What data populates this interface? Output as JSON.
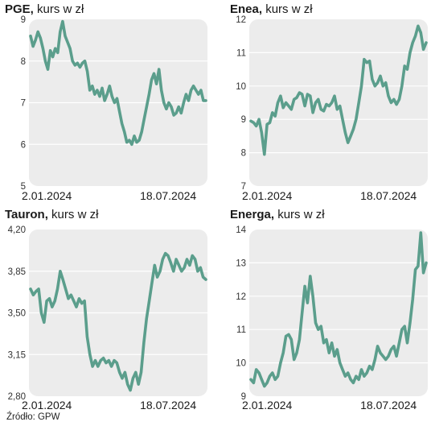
{
  "source": "Źródło: GPW",
  "colors": {
    "line": "#5b9e8c",
    "plot_bg": "#ececec",
    "grid": "#ffffff",
    "text": "#1a1a1a"
  },
  "chart_data": [
    {
      "type": "line",
      "title_bold": "PGE,",
      "title_rest": " kurs w zł",
      "x_tick_labels": [
        "2.01.2024",
        "18.07.2024"
      ],
      "y_tick_labels": [
        "5",
        "6",
        "7",
        "8",
        "9"
      ],
      "ylim": [
        5,
        9
      ],
      "grid": true,
      "values": [
        8.6,
        8.35,
        8.5,
        8.7,
        8.55,
        8.3,
        8.0,
        7.8,
        8.25,
        8.1,
        8.3,
        8.2,
        8.7,
        8.95,
        8.6,
        8.45,
        8.3,
        8.0,
        7.9,
        7.95,
        7.85,
        7.95,
        8.0,
        7.75,
        7.3,
        7.4,
        7.2,
        7.3,
        7.15,
        7.35,
        7.05,
        7.2,
        7.4,
        7.15,
        7.0,
        7.1,
        6.8,
        6.5,
        6.3,
        6.05,
        6.1,
        6.0,
        6.2,
        6.05,
        6.1,
        6.3,
        6.6,
        6.9,
        7.2,
        7.55,
        7.7,
        7.45,
        7.8,
        7.3,
        7.0,
        6.85,
        7.0,
        6.9,
        6.7,
        6.75,
        6.9,
        6.75,
        7.0,
        7.2,
        7.05,
        7.3,
        7.4,
        7.3,
        7.2,
        7.3,
        7.05,
        7.05
      ]
    },
    {
      "type": "line",
      "title_bold": "Enea,",
      "title_rest": " kurs w zł",
      "x_tick_labels": [
        "2.01.2024",
        "18.07.2024"
      ],
      "y_tick_labels": [
        "7",
        "8",
        "9",
        "10",
        "11",
        "12"
      ],
      "ylim": [
        7,
        12
      ],
      "grid": true,
      "values": [
        8.95,
        8.9,
        8.8,
        9.0,
        8.6,
        7.95,
        8.85,
        8.9,
        9.2,
        9.1,
        9.5,
        9.7,
        9.35,
        9.5,
        9.4,
        9.3,
        9.6,
        9.65,
        9.8,
        9.75,
        9.4,
        9.75,
        9.7,
        9.2,
        9.5,
        9.6,
        9.3,
        9.25,
        9.45,
        9.4,
        9.5,
        9.7,
        9.3,
        9.4,
        9.0,
        8.6,
        8.3,
        8.5,
        8.7,
        9.0,
        9.5,
        10.0,
        10.8,
        10.7,
        10.75,
        10.2,
        10.0,
        10.1,
        10.3,
        10.0,
        10.1,
        9.7,
        9.5,
        9.6,
        9.45,
        9.6,
        10.0,
        10.6,
        10.5,
        11.0,
        11.3,
        11.5,
        11.8,
        11.6,
        11.1,
        11.3
      ]
    },
    {
      "type": "line",
      "title_bold": "Tauron,",
      "title_rest": " kurs w zł",
      "x_tick_labels": [
        "2.01.2024",
        "18.07.2024"
      ],
      "y_tick_labels": [
        "2,80",
        "3,15",
        "3,50",
        "3,85",
        "4,20"
      ],
      "ylim": [
        2.8,
        4.2
      ],
      "grid": true,
      "values": [
        3.7,
        3.65,
        3.68,
        3.7,
        3.5,
        3.42,
        3.6,
        3.62,
        3.55,
        3.6,
        3.7,
        3.85,
        3.78,
        3.7,
        3.62,
        3.65,
        3.6,
        3.55,
        3.62,
        3.58,
        3.6,
        3.3,
        3.15,
        3.05,
        3.1,
        3.05,
        3.1,
        3.12,
        3.08,
        3.1,
        3.05,
        3.1,
        3.08,
        3.0,
        2.95,
        3.0,
        2.9,
        2.85,
        2.95,
        3.0,
        2.9,
        3.0,
        3.25,
        3.45,
        3.6,
        3.75,
        3.9,
        3.8,
        3.85,
        3.95,
        4.0,
        3.98,
        3.92,
        3.85,
        3.95,
        3.9,
        3.85,
        3.88,
        3.95,
        3.9,
        3.98,
        3.95,
        3.85,
        3.88,
        3.8,
        3.78
      ]
    },
    {
      "type": "line",
      "title_bold": "Energa,",
      "title_rest": " kurs w zł",
      "x_tick_labels": [
        "2.01.2024",
        "18.07.2024"
      ],
      "y_tick_labels": [
        "9",
        "10",
        "11",
        "12",
        "13",
        "14"
      ],
      "ylim": [
        9,
        14
      ],
      "grid": true,
      "values": [
        9.5,
        9.4,
        9.8,
        9.7,
        9.5,
        9.3,
        9.4,
        9.6,
        9.7,
        9.5,
        9.6,
        10.0,
        10.3,
        10.8,
        10.85,
        10.7,
        10.1,
        10.3,
        10.7,
        11.5,
        12.3,
        11.8,
        12.6,
        12.0,
        11.2,
        11.0,
        11.1,
        10.6,
        10.7,
        10.3,
        10.6,
        10.2,
        10.4,
        10.0,
        9.8,
        9.6,
        9.7,
        9.5,
        9.4,
        9.6,
        9.5,
        9.8,
        9.6,
        9.7,
        9.9,
        9.8,
        10.1,
        10.5,
        10.3,
        10.2,
        10.1,
        10.2,
        10.4,
        10.5,
        10.2,
        10.6,
        11.0,
        11.1,
        10.6,
        11.2,
        11.9,
        12.8,
        12.9,
        13.9,
        12.7,
        13.0
      ]
    }
  ]
}
